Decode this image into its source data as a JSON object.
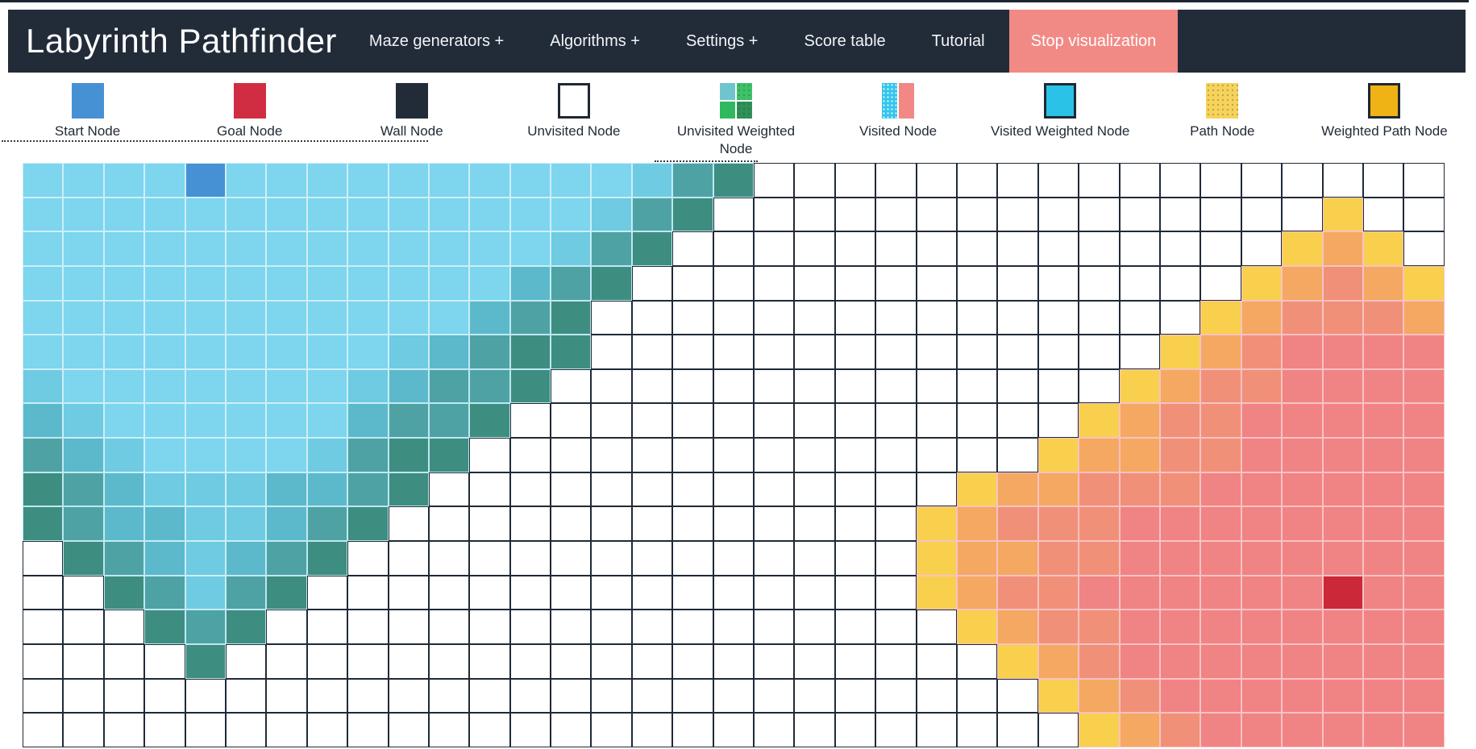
{
  "navbar": {
    "brand": "Labyrinth Pathfinder",
    "bg": "#222b38",
    "items": [
      {
        "label": "Maze generators +"
      },
      {
        "label": "Algorithms +"
      },
      {
        "label": "Settings +"
      },
      {
        "label": "Score table"
      },
      {
        "label": "Tutorial"
      }
    ],
    "stop_button": {
      "label": "Stop visualization",
      "color": "#f18a85"
    }
  },
  "legend": {
    "items": [
      {
        "label": "Start Node",
        "swatch": {
          "kind": "solid",
          "color": "#4691d3"
        }
      },
      {
        "label": "Goal Node",
        "swatch": {
          "kind": "solid",
          "color": "#d12d42"
        }
      },
      {
        "label": "Wall Node",
        "swatch": {
          "kind": "solid",
          "color": "#222c39"
        }
      },
      {
        "label": "Unvisited Node",
        "swatch": {
          "kind": "solid",
          "color": "#ffffff",
          "border": true
        }
      },
      {
        "label": "Unvisited Weighted Node",
        "swatch": {
          "kind": "quad",
          "colors": [
            "#6fc5ce",
            "#3ec167",
            "#2fb95f",
            "#2f9158"
          ],
          "textured": [
            1,
            3
          ]
        }
      },
      {
        "label": "Visited Node",
        "swatch": {
          "kind": "split",
          "colors": [
            "#33c5ec",
            "#f18886"
          ],
          "textured": [
            0
          ]
        }
      },
      {
        "label": "Visited Weighted Node",
        "swatch": {
          "kind": "solid",
          "color": "#2bc2e7",
          "border": true
        }
      },
      {
        "label": "Path Node",
        "swatch": {
          "kind": "solid",
          "color": "#f8d35b",
          "textured": [
            0
          ]
        }
      },
      {
        "label": "Weighted Path Node",
        "swatch": {
          "kind": "solid",
          "color": "#f0b315",
          "border": true
        }
      }
    ],
    "swatch_border_color": "#1f2733"
  },
  "grid": {
    "cols": 35,
    "rows": 17,
    "palette": {
      ".": {
        "bg": "#ffffff",
        "bd": "#1f2a37",
        "name": "unvisited"
      },
      "1": {
        "bg": "#7dd5ee",
        "bd": "#cdeff8",
        "name": "visited-cyan-light"
      },
      "2": {
        "bg": "#6ecbe1",
        "bd": "#cdeff8",
        "name": "visited-cyan"
      },
      "3": {
        "bg": "#5cb9cb",
        "bd": "#c4ecf5",
        "name": "visited-teal"
      },
      "4": {
        "bg": "#4fa2a3",
        "bd": "#bde8f2",
        "name": "visited-teal-dark"
      },
      "5": {
        "bg": "#3d8e80",
        "bd": "#bde8f2",
        "name": "visited-frontier-green"
      },
      "S": {
        "bg": "#4691d3",
        "bd": "#cdeff8",
        "name": "start-node"
      },
      "G": {
        "bg": "#cb2839",
        "bd": "#f8c2c3",
        "name": "goal-node"
      },
      "y": {
        "bg": "#f8d04e",
        "bd": "#f8c2c3",
        "name": "frontier-yellow"
      },
      "o": {
        "bg": "#f5a862",
        "bd": "#f8c2c3",
        "name": "visited-orange"
      },
      "r": {
        "bg": "#f19078",
        "bd": "#f8c2c3",
        "name": "visited-salmon"
      },
      "p": {
        "bg": "#f08384",
        "bd": "#f8c2c3",
        "name": "visited-pink"
      }
    },
    "cells": [
      "1111S1111111111245.................",
      "11111111111111245...............y..",
      "1111111111111245...............yoy.",
      "111111111111345...............yoroy",
      "11111111111345...............yorrro",
      "11111111123455..............yorpppp",
      "2111111123445..............yorrpppp",
      "321111113445..............yorrppppp",
      "43211112455..............yoorrppppp",
      "5432223345.............yoorrrpppppp",
      "543322345.............yorrrpppppppp",
      ".5432345..............yoorrpppppppp",
      "..54245...............yorrppppppGpp",
      "...545.................yorrpppppppp",
      "....5...................yorpppppppp",
      ".........................yorppppppp",
      "..........................yorpppppp"
    ]
  }
}
